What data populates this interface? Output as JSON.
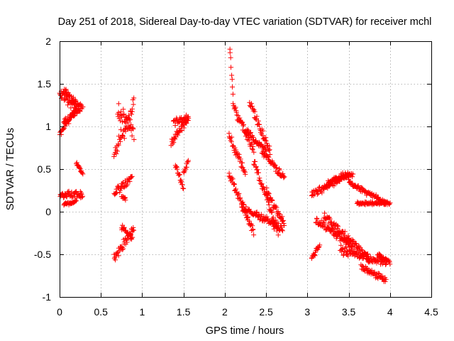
{
  "chart_data": {
    "type": "scatter",
    "title": "Day 251 of 2018, Sidereal Day-to-day VTEC variation (SDTVAR) for receiver mchl",
    "xlabel": "GPS time / hours",
    "ylabel": "SDTVAR / TECUs",
    "xlim": [
      0,
      4.5
    ],
    "ylim": [
      -1,
      2
    ],
    "xticks": [
      0,
      0.5,
      1,
      1.5,
      2,
      2.5,
      3,
      3.5,
      4,
      4.5
    ],
    "yticks": [
      -1,
      -0.5,
      0,
      0.5,
      1,
      1.5,
      2
    ],
    "xtick_labels": [
      "0",
      "0.5",
      "1",
      "1.5",
      "2",
      "2.5",
      "3",
      "3.5",
      "4",
      "4.5"
    ],
    "ytick_labels": [
      "-1",
      "-0.5",
      "0",
      "0.5",
      "1",
      "1.5",
      "2"
    ],
    "grid": true,
    "marker": "+",
    "color": "#ff0000",
    "series": [
      {
        "name": "SDTVAR",
        "segments": [
          {
            "x": [
              0.0,
              0.2
            ],
            "y": [
              0.9,
              1.22
            ],
            "noise": 0.05
          },
          {
            "x": [
              0.0,
              0.2
            ],
            "y": [
              1.38,
              1.25
            ],
            "noise": 0.08
          },
          {
            "x": [
              0.05,
              0.28
            ],
            "y": [
              1.4,
              1.22
            ],
            "noise": 0.06
          },
          {
            "x": [
              0.05,
              0.25
            ],
            "y": [
              1.05,
              1.2
            ],
            "noise": 0.04
          },
          {
            "x": [
              0.2,
              0.28
            ],
            "y": [
              0.58,
              0.45
            ],
            "noise": 0.03
          },
          {
            "x": [
              0.0,
              0.28
            ],
            "y": [
              0.2,
              0.2
            ],
            "noise": 0.05
          },
          {
            "x": [
              0.05,
              0.2
            ],
            "y": [
              0.08,
              0.12
            ],
            "noise": 0.02
          },
          {
            "x": [
              0.66,
              0.9
            ],
            "y": [
              0.65,
              1.25
            ],
            "noise": 0.12
          },
          {
            "x": [
              0.7,
              0.9
            ],
            "y": [
              1.2,
              0.9
            ],
            "noise": 0.12
          },
          {
            "x": [
              0.66,
              0.88
            ],
            "y": [
              0.22,
              0.4
            ],
            "noise": 0.06
          },
          {
            "x": [
              0.75,
              0.8
            ],
            "y": [
              0.18,
              0.15
            ],
            "noise": 0.03
          },
          {
            "x": [
              0.66,
              0.9
            ],
            "y": [
              -0.55,
              -0.18
            ],
            "noise": 0.06
          },
          {
            "x": [
              0.75,
              0.88
            ],
            "y": [
              -0.18,
              -0.32
            ],
            "noise": 0.04
          },
          {
            "x": [
              1.35,
              1.56
            ],
            "y": [
              0.8,
              1.1
            ],
            "noise": 0.07
          },
          {
            "x": [
              1.38,
              1.56
            ],
            "y": [
              1.05,
              1.1
            ],
            "noise": 0.05
          },
          {
            "x": [
              1.4,
              1.5
            ],
            "y": [
              0.55,
              0.27
            ],
            "noise": 0.04
          },
          {
            "x": [
              1.5,
              1.56
            ],
            "y": [
              0.45,
              0.6
            ],
            "noise": 0.03
          },
          {
            "x": [
              2.06,
              2.1
            ],
            "y": [
              1.93,
              1.4
            ],
            "noise": 0.05
          },
          {
            "x": [
              2.05,
              2.25
            ],
            "y": [
              0.9,
              0.45
            ],
            "noise": 0.07
          },
          {
            "x": [
              2.1,
              2.35
            ],
            "y": [
              1.25,
              0.7
            ],
            "noise": 0.07
          },
          {
            "x": [
              2.25,
              2.5
            ],
            "y": [
              0.95,
              0.72
            ],
            "noise": 0.05
          },
          {
            "x": [
              2.3,
              2.55
            ],
            "y": [
              1.3,
              0.7
            ],
            "noise": 0.07
          },
          {
            "x": [
              2.45,
              2.72
            ],
            "y": [
              0.7,
              0.4
            ],
            "noise": 0.05
          },
          {
            "x": [
              2.05,
              2.35
            ],
            "y": [
              0.45,
              -0.25
            ],
            "noise": 0.06
          },
          {
            "x": [
              2.2,
              2.7
            ],
            "y": [
              0.05,
              -0.2
            ],
            "noise": 0.06
          },
          {
            "x": [
              2.35,
              2.65
            ],
            "y": [
              0.6,
              -0.25
            ],
            "noise": 0.06
          },
          {
            "x": [
              2.5,
              2.72
            ],
            "y": [
              0.25,
              -0.15
            ],
            "noise": 0.06
          },
          {
            "x": [
              3.05,
              3.15
            ],
            "y": [
              -0.55,
              -0.4
            ],
            "noise": 0.04
          },
          {
            "x": [
              3.05,
              3.5
            ],
            "y": [
              0.2,
              0.45
            ],
            "noise": 0.06
          },
          {
            "x": [
              3.25,
              3.55
            ],
            "y": [
              0.35,
              0.45
            ],
            "noise": 0.04
          },
          {
            "x": [
              3.1,
              3.55
            ],
            "y": [
              -0.1,
              -0.4
            ],
            "noise": 0.05
          },
          {
            "x": [
              3.2,
              3.75
            ],
            "y": [
              -0.05,
              -0.55
            ],
            "noise": 0.06
          },
          {
            "x": [
              3.5,
              3.95
            ],
            "y": [
              0.35,
              0.1
            ],
            "noise": 0.04
          },
          {
            "x": [
              3.6,
              4.0
            ],
            "y": [
              0.1,
              0.1
            ],
            "noise": 0.02
          },
          {
            "x": [
              3.4,
              3.95
            ],
            "y": [
              -0.45,
              -0.6
            ],
            "noise": 0.06
          },
          {
            "x": [
              3.65,
              3.95
            ],
            "y": [
              -0.65,
              -0.8
            ],
            "noise": 0.04
          },
          {
            "x": [
              3.85,
              4.0
            ],
            "y": [
              -0.5,
              -0.6
            ],
            "noise": 0.03
          }
        ]
      }
    ]
  }
}
